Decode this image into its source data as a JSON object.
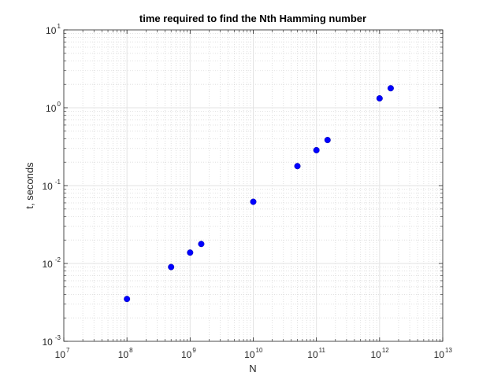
{
  "chart_data": {
    "type": "scatter",
    "title": "time required to find the Nth Hamming number",
    "xlabel": "N",
    "ylabel": "t, seconds",
    "xscale": "log",
    "yscale": "log",
    "xlim": [
      10000000.0,
      10000000000000.0
    ],
    "ylim": [
      0.001,
      10
    ],
    "grid": true,
    "minor_grid": true,
    "legend": "none",
    "marker_color": "#0000ff",
    "x_ticks": [
      {
        "base": "10",
        "exp": "7",
        "value": 10000000.0
      },
      {
        "base": "10",
        "exp": "8",
        "value": 100000000.0
      },
      {
        "base": "10",
        "exp": "9",
        "value": 1000000000.0
      },
      {
        "base": "10",
        "exp": "10",
        "value": 10000000000.0
      },
      {
        "base": "10",
        "exp": "11",
        "value": 100000000000.0
      },
      {
        "base": "10",
        "exp": "12",
        "value": 1000000000000.0
      },
      {
        "base": "10",
        "exp": "13",
        "value": 10000000000000.0
      }
    ],
    "y_ticks": [
      {
        "base": "10",
        "exp": "-3",
        "value": 0.001
      },
      {
        "base": "10",
        "exp": "-2",
        "value": 0.01
      },
      {
        "base": "10",
        "exp": "-1",
        "value": 0.1
      },
      {
        "base": "10",
        "exp": "0",
        "value": 1
      },
      {
        "base": "10",
        "exp": "1",
        "value": 10
      }
    ],
    "points": [
      {
        "x": 100000000.0,
        "y": 0.0035
      },
      {
        "x": 500000000.0,
        "y": 0.009
      },
      {
        "x": 1000000000.0,
        "y": 0.0138
      },
      {
        "x": 1500000000.0,
        "y": 0.0178
      },
      {
        "x": 10000000000.0,
        "y": 0.062
      },
      {
        "x": 50000000000.0,
        "y": 0.178
      },
      {
        "x": 100000000000.0,
        "y": 0.285
      },
      {
        "x": 150000000000.0,
        "y": 0.385
      },
      {
        "x": 1000000000000.0,
        "y": 1.32
      },
      {
        "x": 1500000000000.0,
        "y": 1.78
      }
    ]
  }
}
